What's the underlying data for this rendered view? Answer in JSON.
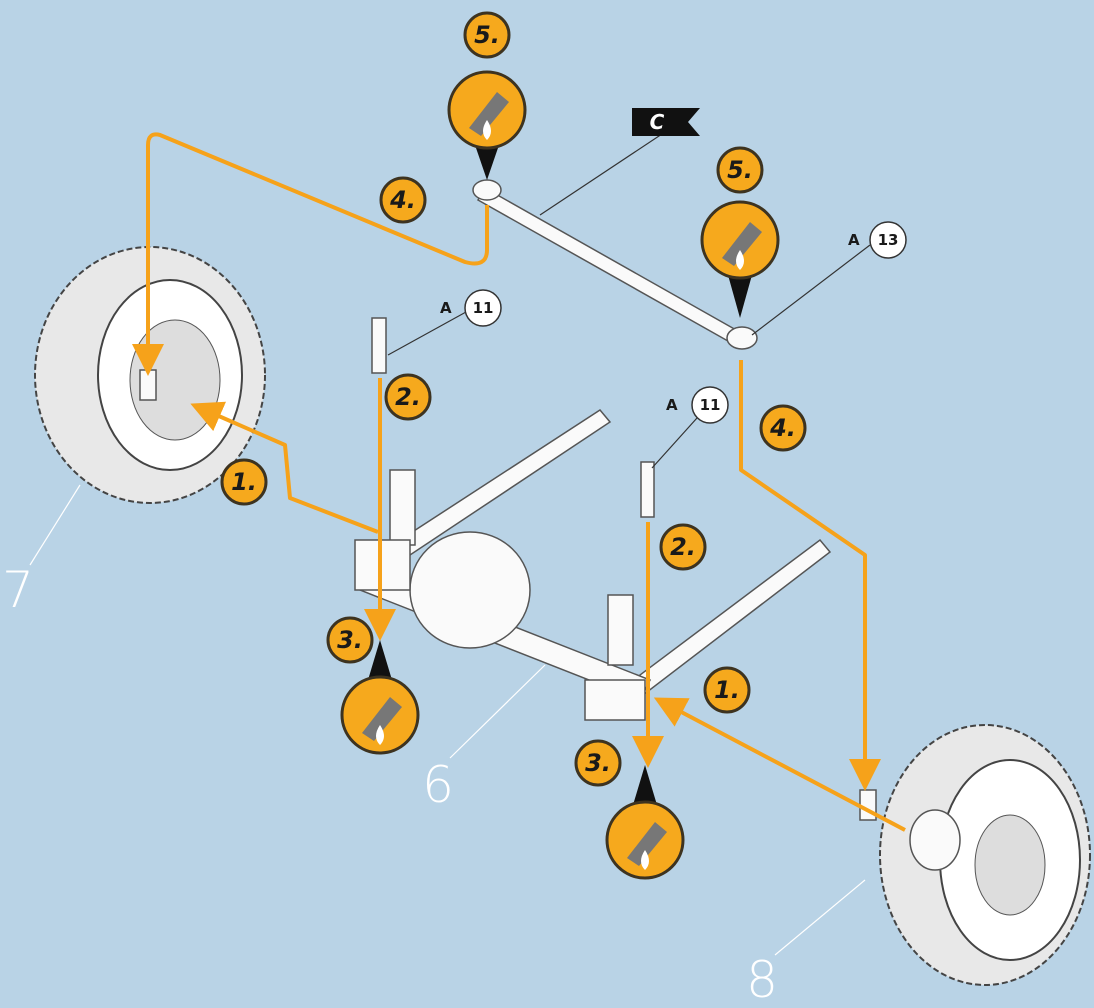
{
  "flag": {
    "label": "C"
  },
  "step_badges": [
    {
      "label": "5."
    },
    {
      "label": "5."
    },
    {
      "label": "4."
    },
    {
      "label": "4."
    },
    {
      "label": "2."
    },
    {
      "label": "2."
    },
    {
      "label": "1."
    },
    {
      "label": "1."
    },
    {
      "label": "3."
    },
    {
      "label": "3."
    }
  ],
  "part_refs": [
    {
      "letter": "A",
      "number": "11"
    },
    {
      "letter": "A",
      "number": "11"
    },
    {
      "letter": "A",
      "number": "13"
    }
  ],
  "part_numbers": [
    "6",
    "7",
    "8"
  ]
}
